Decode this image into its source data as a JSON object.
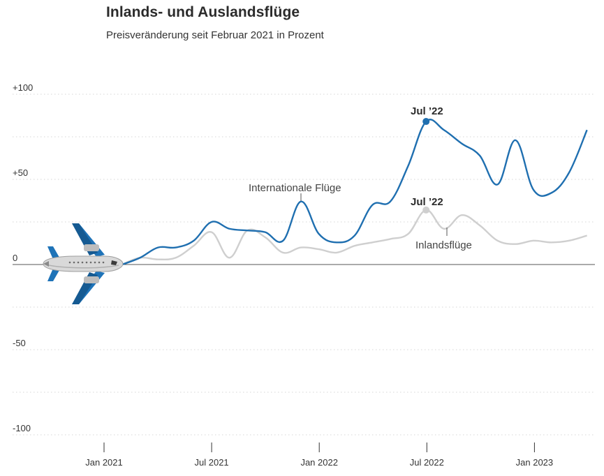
{
  "title": "Inlands- und Auslandsflüge",
  "subtitle": "Preisveränderung seit Februar 2021 in Prozent",
  "colors": {
    "international": "#1f6fb0",
    "inland": "#cfcfcf",
    "zero_line": "#555555",
    "grid": "#d6d6d6"
  },
  "chart_data": {
    "type": "line",
    "title": "Inlands- und Auslandsflüge",
    "subtitle": "Preisveränderung seit Februar 2021 in Prozent",
    "ylim": [
      -100,
      100
    ],
    "yticks": [
      {
        "value": 100,
        "label": "+100"
      },
      {
        "value": 50,
        "label": "+50"
      },
      {
        "value": 0,
        "label": "0"
      },
      {
        "value": -50,
        "label": "-50"
      },
      {
        "value": -100,
        "label": "-100"
      }
    ],
    "grid": true,
    "xticks": [
      "Jan 2021",
      "Jul 2021",
      "Jan 2022",
      "Jul 2022",
      "Jan 2023"
    ],
    "x": [
      "2021-02",
      "2021-03",
      "2021-04",
      "2021-05",
      "2021-06",
      "2021-07",
      "2021-08",
      "2021-09",
      "2021-10",
      "2021-11",
      "2021-12",
      "2022-01",
      "2022-02",
      "2022-03",
      "2022-04",
      "2022-05",
      "2022-06",
      "2022-07",
      "2022-08",
      "2022-09",
      "2022-10",
      "2022-11",
      "2022-12",
      "2023-01",
      "2023-02",
      "2023-03",
      "2023-04"
    ],
    "series": [
      {
        "name": "Internationale Flüge",
        "values": [
          0,
          4,
          10,
          10,
          14,
          25,
          21,
          20,
          19,
          14,
          37,
          18,
          13,
          17,
          35,
          37,
          58,
          84,
          79,
          71,
          64,
          47,
          73,
          44,
          42,
          54,
          79
        ]
      },
      {
        "name": "Inlandsflüge",
        "values": [
          0,
          4,
          3,
          4,
          11,
          19,
          4,
          20,
          16,
          7,
          10,
          9,
          7,
          11,
          13,
          15,
          18,
          32,
          21,
          29,
          23,
          14,
          12,
          14,
          13,
          14,
          17
        ]
      }
    ],
    "annotations": [
      {
        "text": "Jul ’22",
        "series": "Internationale Flüge",
        "x": "2022-07",
        "y": 84
      },
      {
        "text": "Jul ’22",
        "series": "Inlandsflüge",
        "x": "2022-07",
        "y": 32
      }
    ]
  }
}
